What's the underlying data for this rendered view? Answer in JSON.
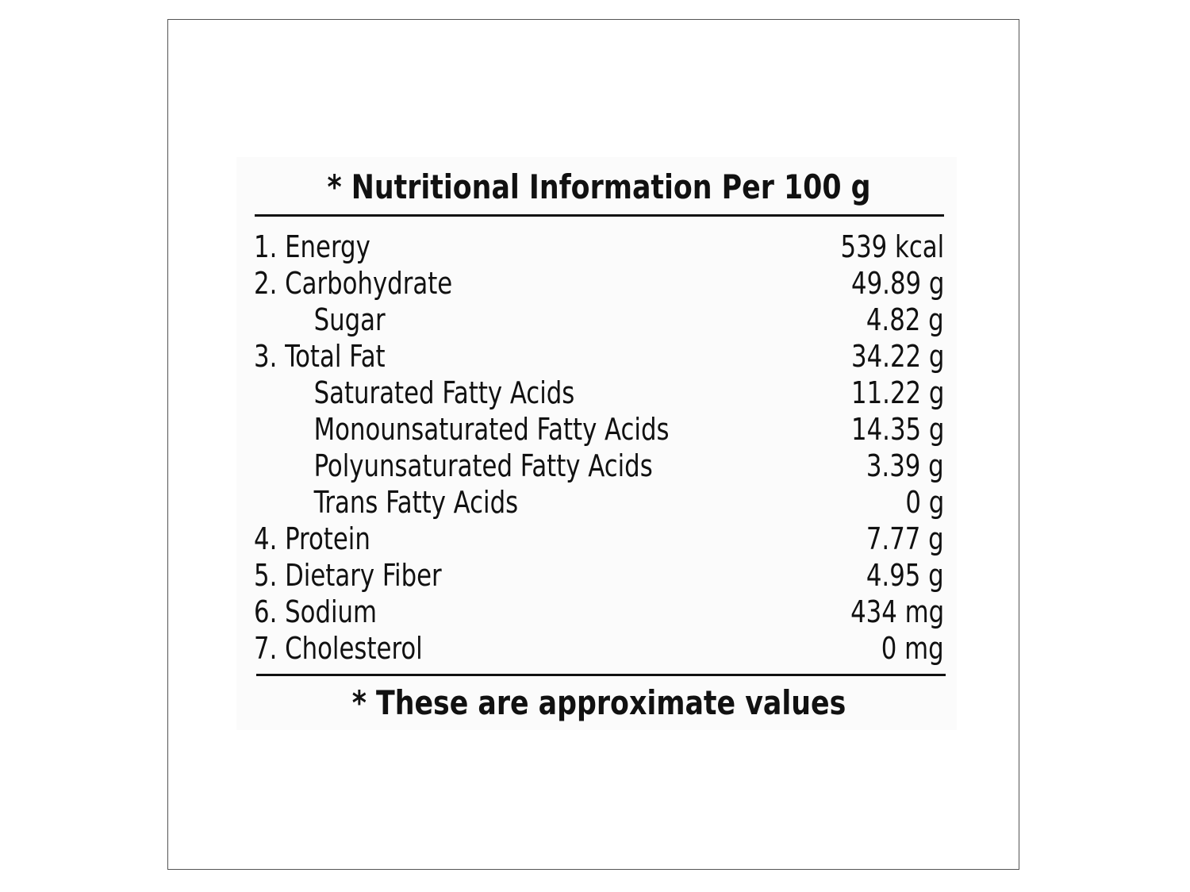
{
  "label": {
    "title": "* Nutritional Information Per 100 g",
    "footnote": "* These are approximate values",
    "items": [
      {
        "label": "1. Energy",
        "value": "539 kcal",
        "sub": false
      },
      {
        "label": "2. Carbohydrate",
        "value": "49.89 g",
        "sub": false
      },
      {
        "label": "Sugar",
        "value": "4.82 g",
        "sub": true
      },
      {
        "label": "3. Total Fat",
        "value": "34.22 g",
        "sub": false
      },
      {
        "label": "Saturated Fatty Acids",
        "value": "11.22 g",
        "sub": true
      },
      {
        "label": "Monounsaturated Fatty Acids",
        "value": "14.35 g",
        "sub": true
      },
      {
        "label": "Polyunsaturated Fatty Acids",
        "value": "3.39 g",
        "sub": true
      },
      {
        "label": "Trans Fatty Acids",
        "value": "0 g",
        "sub": true
      },
      {
        "label": "4. Protein",
        "value": "7.77 g",
        "sub": false
      },
      {
        "label": "5. Dietary Fiber",
        "value": "4.95 g",
        "sub": false
      },
      {
        "label": "6. Sodium",
        "value": "434 mg",
        "sub": false
      },
      {
        "label": "7. Cholesterol",
        "value": "0 mg",
        "sub": false
      }
    ]
  }
}
